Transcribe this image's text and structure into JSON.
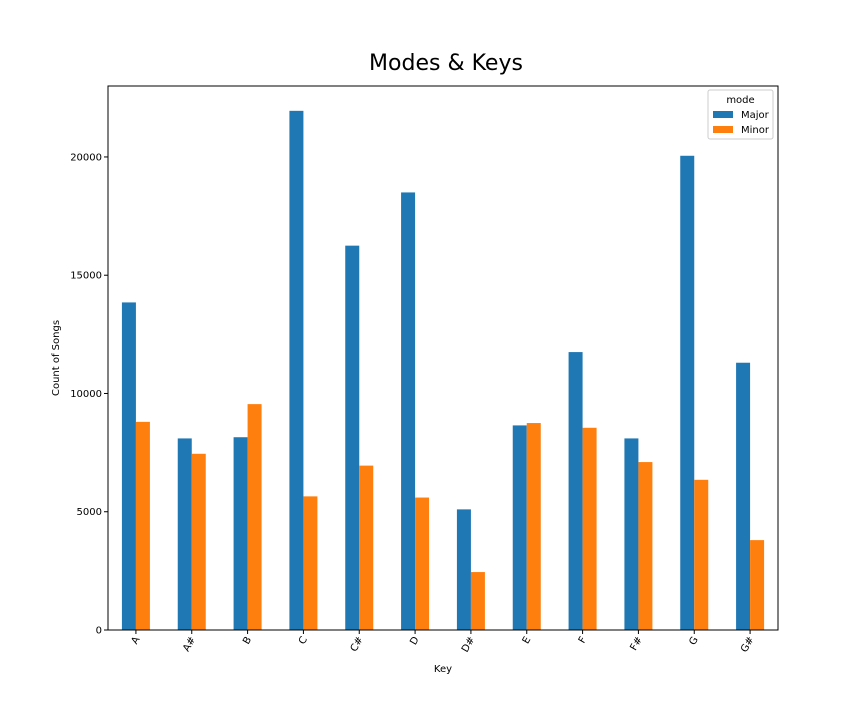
{
  "chart_data": {
    "type": "bar",
    "title": "Modes & Keys",
    "xlabel": "Key",
    "ylabel": "Count of Songs",
    "categories": [
      "A",
      "A#",
      "B",
      "C",
      "C#",
      "D",
      "D#",
      "E",
      "F",
      "F#",
      "G",
      "G#"
    ],
    "series": [
      {
        "name": "Major",
        "color": "#1f77b4",
        "values": [
          13850,
          8100,
          8150,
          21950,
          16250,
          18500,
          5100,
          8650,
          11750,
          8100,
          20050,
          11300
        ]
      },
      {
        "name": "Minor",
        "color": "#ff7f0e",
        "values": [
          8800,
          7450,
          9550,
          5650,
          6950,
          5600,
          2450,
          8750,
          8550,
          7100,
          6350,
          3800
        ]
      }
    ],
    "ylim": [
      0,
      23000
    ],
    "yticks": [
      0,
      5000,
      10000,
      15000,
      20000
    ],
    "legend": {
      "title": "mode",
      "position": "top-right"
    },
    "grid": false
  }
}
